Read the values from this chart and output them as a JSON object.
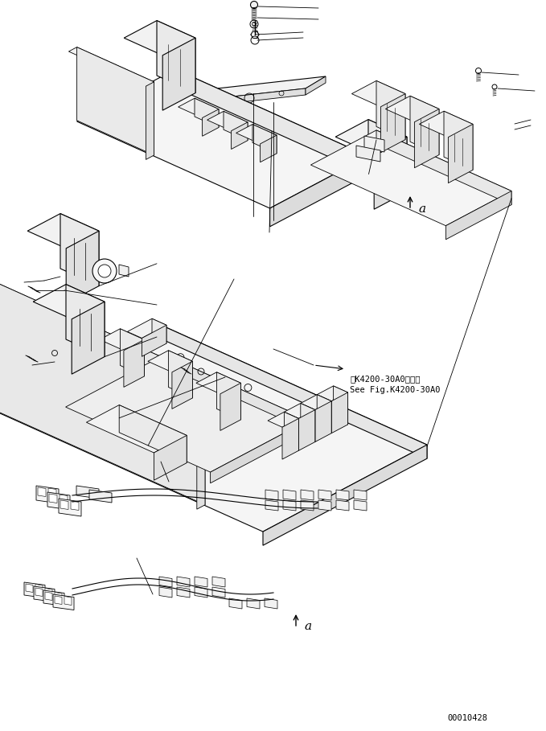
{
  "background_color": "#ffffff",
  "line_color": "#000000",
  "figure_id": "00010428",
  "annotation_text1": "第K4200-30A0図参照",
  "annotation_text2": "See Fig.K4200-30A0",
  "label_a": "a",
  "page_width": 6.79,
  "page_height": 9.09,
  "dpi": 100
}
